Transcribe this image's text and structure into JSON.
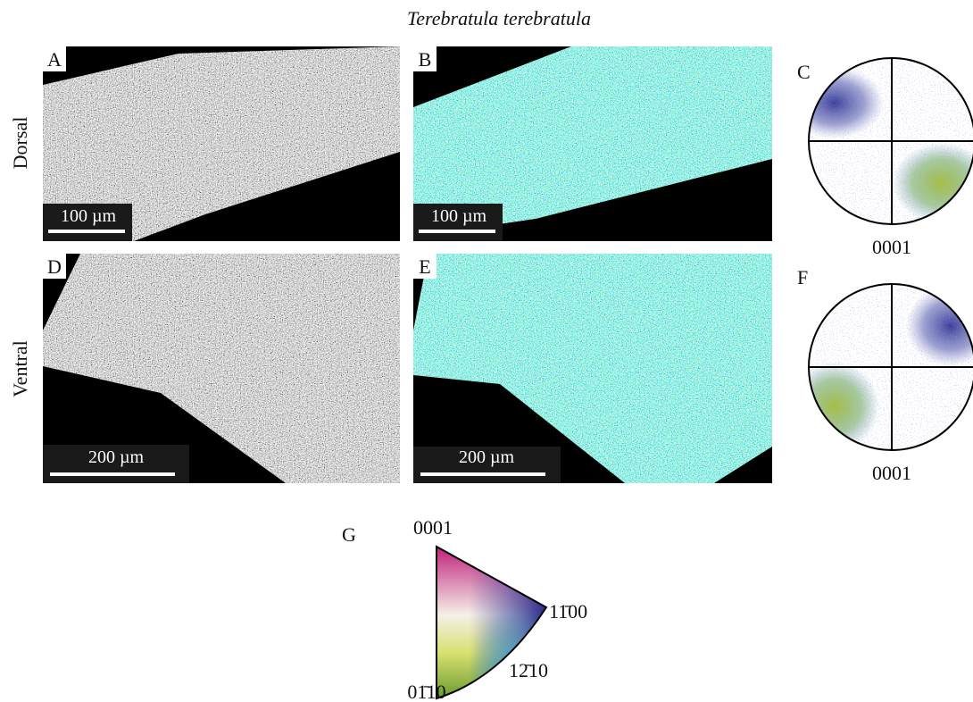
{
  "title": "Terebratula terebratula",
  "row_labels": [
    "Dorsal",
    "Ventral"
  ],
  "panels": [
    {
      "label": "A",
      "scale_bar": "100 µm"
    },
    {
      "label": "B",
      "scale_bar": "100 µm"
    },
    {
      "label": "C",
      "axis_label": "0001"
    },
    {
      "label": "D",
      "scale_bar": "200 µm"
    },
    {
      "label": "E",
      "scale_bar": "200 µm"
    },
    {
      "label": "F",
      "axis_label": "0001"
    }
  ],
  "color_key": {
    "label": "G",
    "corners": [
      "0001",
      "11̄00",
      "12̄10",
      "01̄10"
    ]
  }
}
